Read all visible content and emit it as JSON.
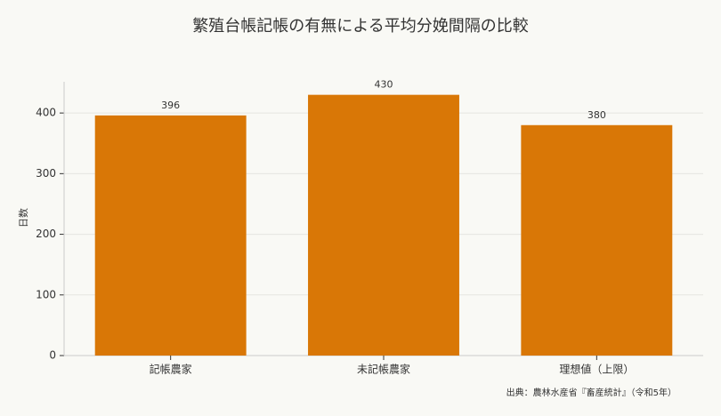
{
  "chart_data": {
    "type": "bar",
    "title": "繁殖台帳記帳の有無による平均分娩間隔の比較",
    "y_label": "日数",
    "categories": [
      "記帳農家",
      "未記帳農家",
      "理想値（上限）"
    ],
    "values": [
      396,
      430,
      380
    ],
    "color": "#d97706",
    "ylim": [
      0,
      451.5
    ],
    "yticks": [
      0,
      100,
      200,
      300,
      400
    ],
    "grid": true,
    "source": "出典：農林水産省『畜産統計』（令和5年）"
  }
}
